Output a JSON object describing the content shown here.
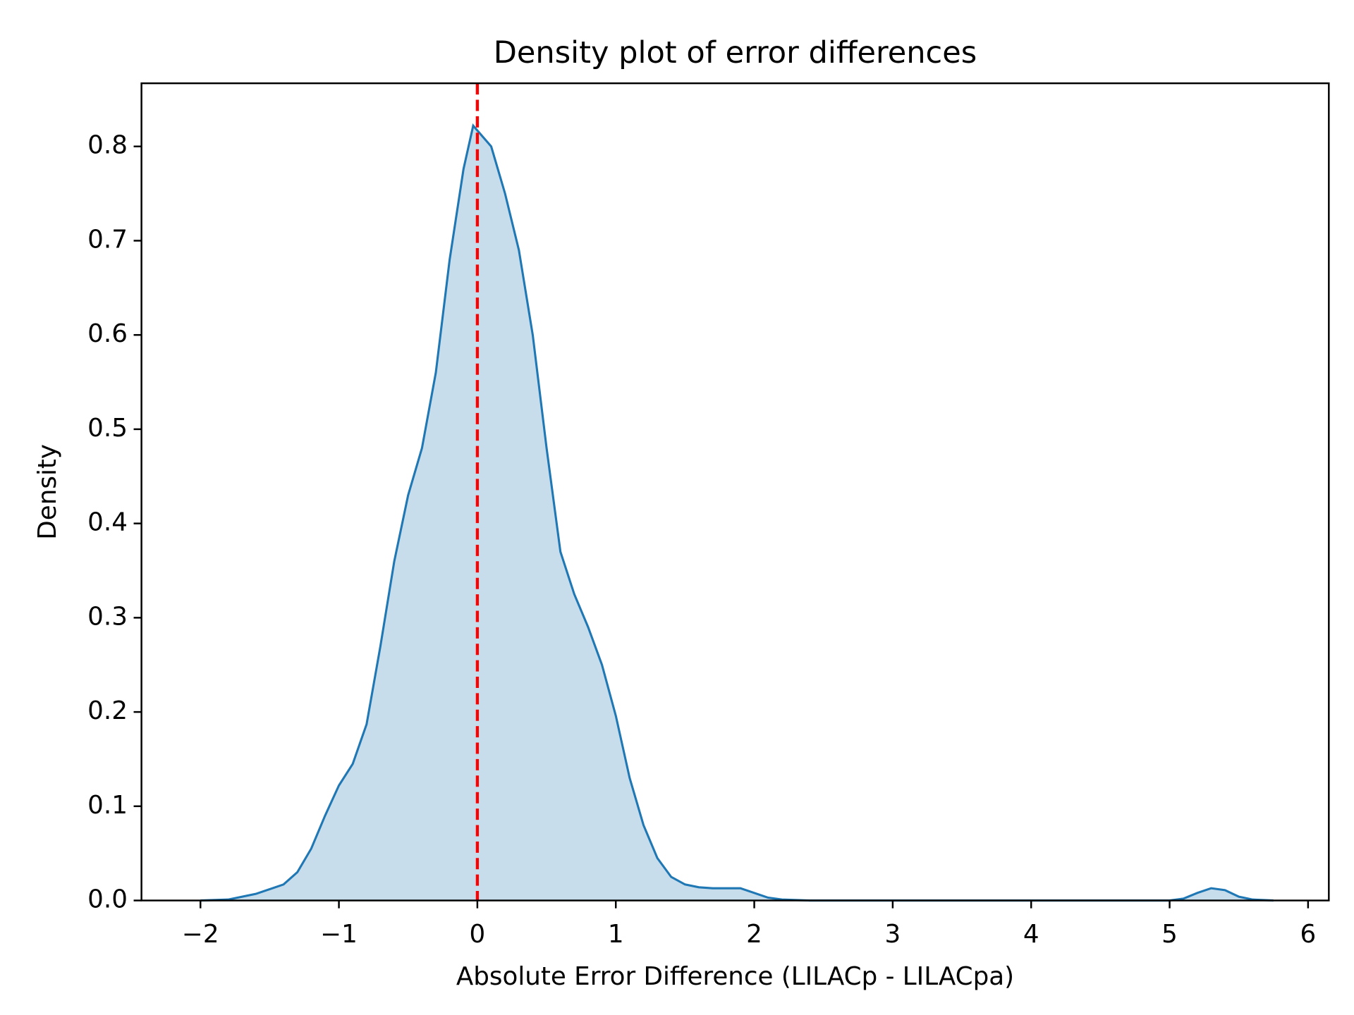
{
  "chart_data": {
    "type": "kde",
    "title": "Density plot of error differences",
    "x_label": "Absolute Error Difference (LILACp - LILACpa)",
    "y_label": "Density",
    "x": [
      -2.0,
      -1.8,
      -1.6,
      -1.4,
      -1.3,
      -1.2,
      -1.1,
      -1.0,
      -0.9,
      -0.8,
      -0.7,
      -0.6,
      -0.5,
      -0.4,
      -0.3,
      -0.2,
      -0.1,
      -0.03,
      0.1,
      0.2,
      0.3,
      0.4,
      0.5,
      0.6,
      0.7,
      0.8,
      0.9,
      1.0,
      1.1,
      1.2,
      1.3,
      1.4,
      1.5,
      1.6,
      1.7,
      1.8,
      1.9,
      2.0,
      2.1,
      2.2,
      2.4,
      3.0,
      4.0,
      5.0,
      5.1,
      5.2,
      5.3,
      5.4,
      5.5,
      5.6,
      5.75
    ],
    "series": [
      {
        "color": "#1f77b4",
        "values": [
          0.0,
          0.001,
          0.007,
          0.017,
          0.03,
          0.055,
          0.09,
          0.122,
          0.145,
          0.187,
          0.27,
          0.36,
          0.43,
          0.48,
          0.56,
          0.68,
          0.776,
          0.822,
          0.8,
          0.75,
          0.69,
          0.6,
          0.48,
          0.37,
          0.325,
          0.29,
          0.25,
          0.196,
          0.13,
          0.08,
          0.045,
          0.025,
          0.017,
          0.014,
          0.013,
          0.013,
          0.013,
          0.008,
          0.003,
          0.001,
          0.0,
          0.0,
          0.0,
          0.0,
          0.002,
          0.008,
          0.013,
          0.011,
          0.004,
          0.001,
          0.0
        ]
      }
    ],
    "vline": {
      "x": 0,
      "color": "#ff0000"
    },
    "xlim": [
      -2.426,
      6.15
    ],
    "ylim": [
      0,
      0.867
    ],
    "xticks": [
      {
        "value": -2,
        "label": "−2"
      },
      {
        "value": -1,
        "label": "−1"
      },
      0,
      1,
      2,
      3,
      4,
      5,
      6
    ],
    "yticks": [
      {
        "value": 0,
        "label": "0.0"
      },
      0.1,
      0.2,
      0.3,
      0.4,
      0.5,
      0.6,
      0.7,
      0.8
    ]
  }
}
